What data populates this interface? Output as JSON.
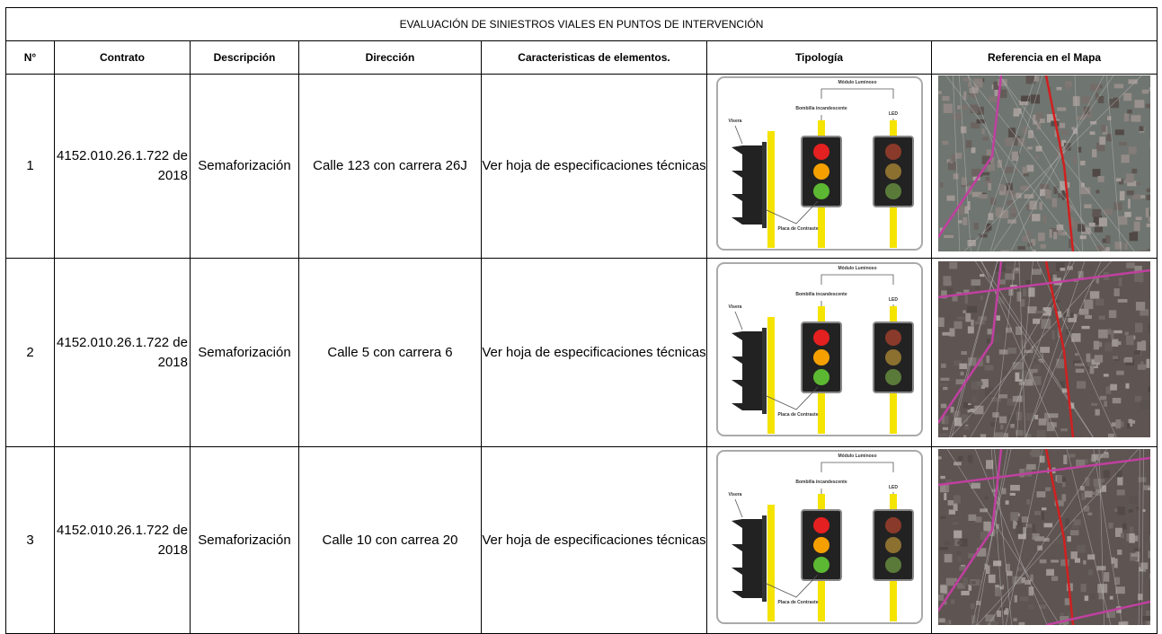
{
  "title": "EVALUACIÓN DE SINIESTROS VIALES EN PUNTOS DE INTERVENCIÓN",
  "table": {
    "headers": [
      "N°",
      "Contrato",
      "Descripción",
      "Dirección",
      "Caracteristicas de elementos.",
      "Tipología",
      "Referencia en el Mapa"
    ],
    "rows": [
      [
        1,
        "4152.010.26.1.722 de 2018",
        "Semaforización",
        "Calle 123 con carrera 26J",
        "Ver hoja de especificaciones técnicas"
      ],
      [
        2,
        "4152.010.26.1.722 de 2018",
        "Semaforización",
        "Calle 5 con carrera 6",
        "Ver hoja de especificaciones técnicas"
      ],
      [
        3,
        "4152.010.26.1.722 de 2018",
        "Semaforización",
        "Calle 10 con carrea 20",
        "Ver hoja de especificaciones técnicas"
      ]
    ]
  },
  "diagram_labels": {
    "module": "Módulo Luminoso",
    "incandescent": "Bombilla incandescente",
    "led": "LED",
    "visor": "Visera",
    "plate": "Placa de Contraste"
  }
}
